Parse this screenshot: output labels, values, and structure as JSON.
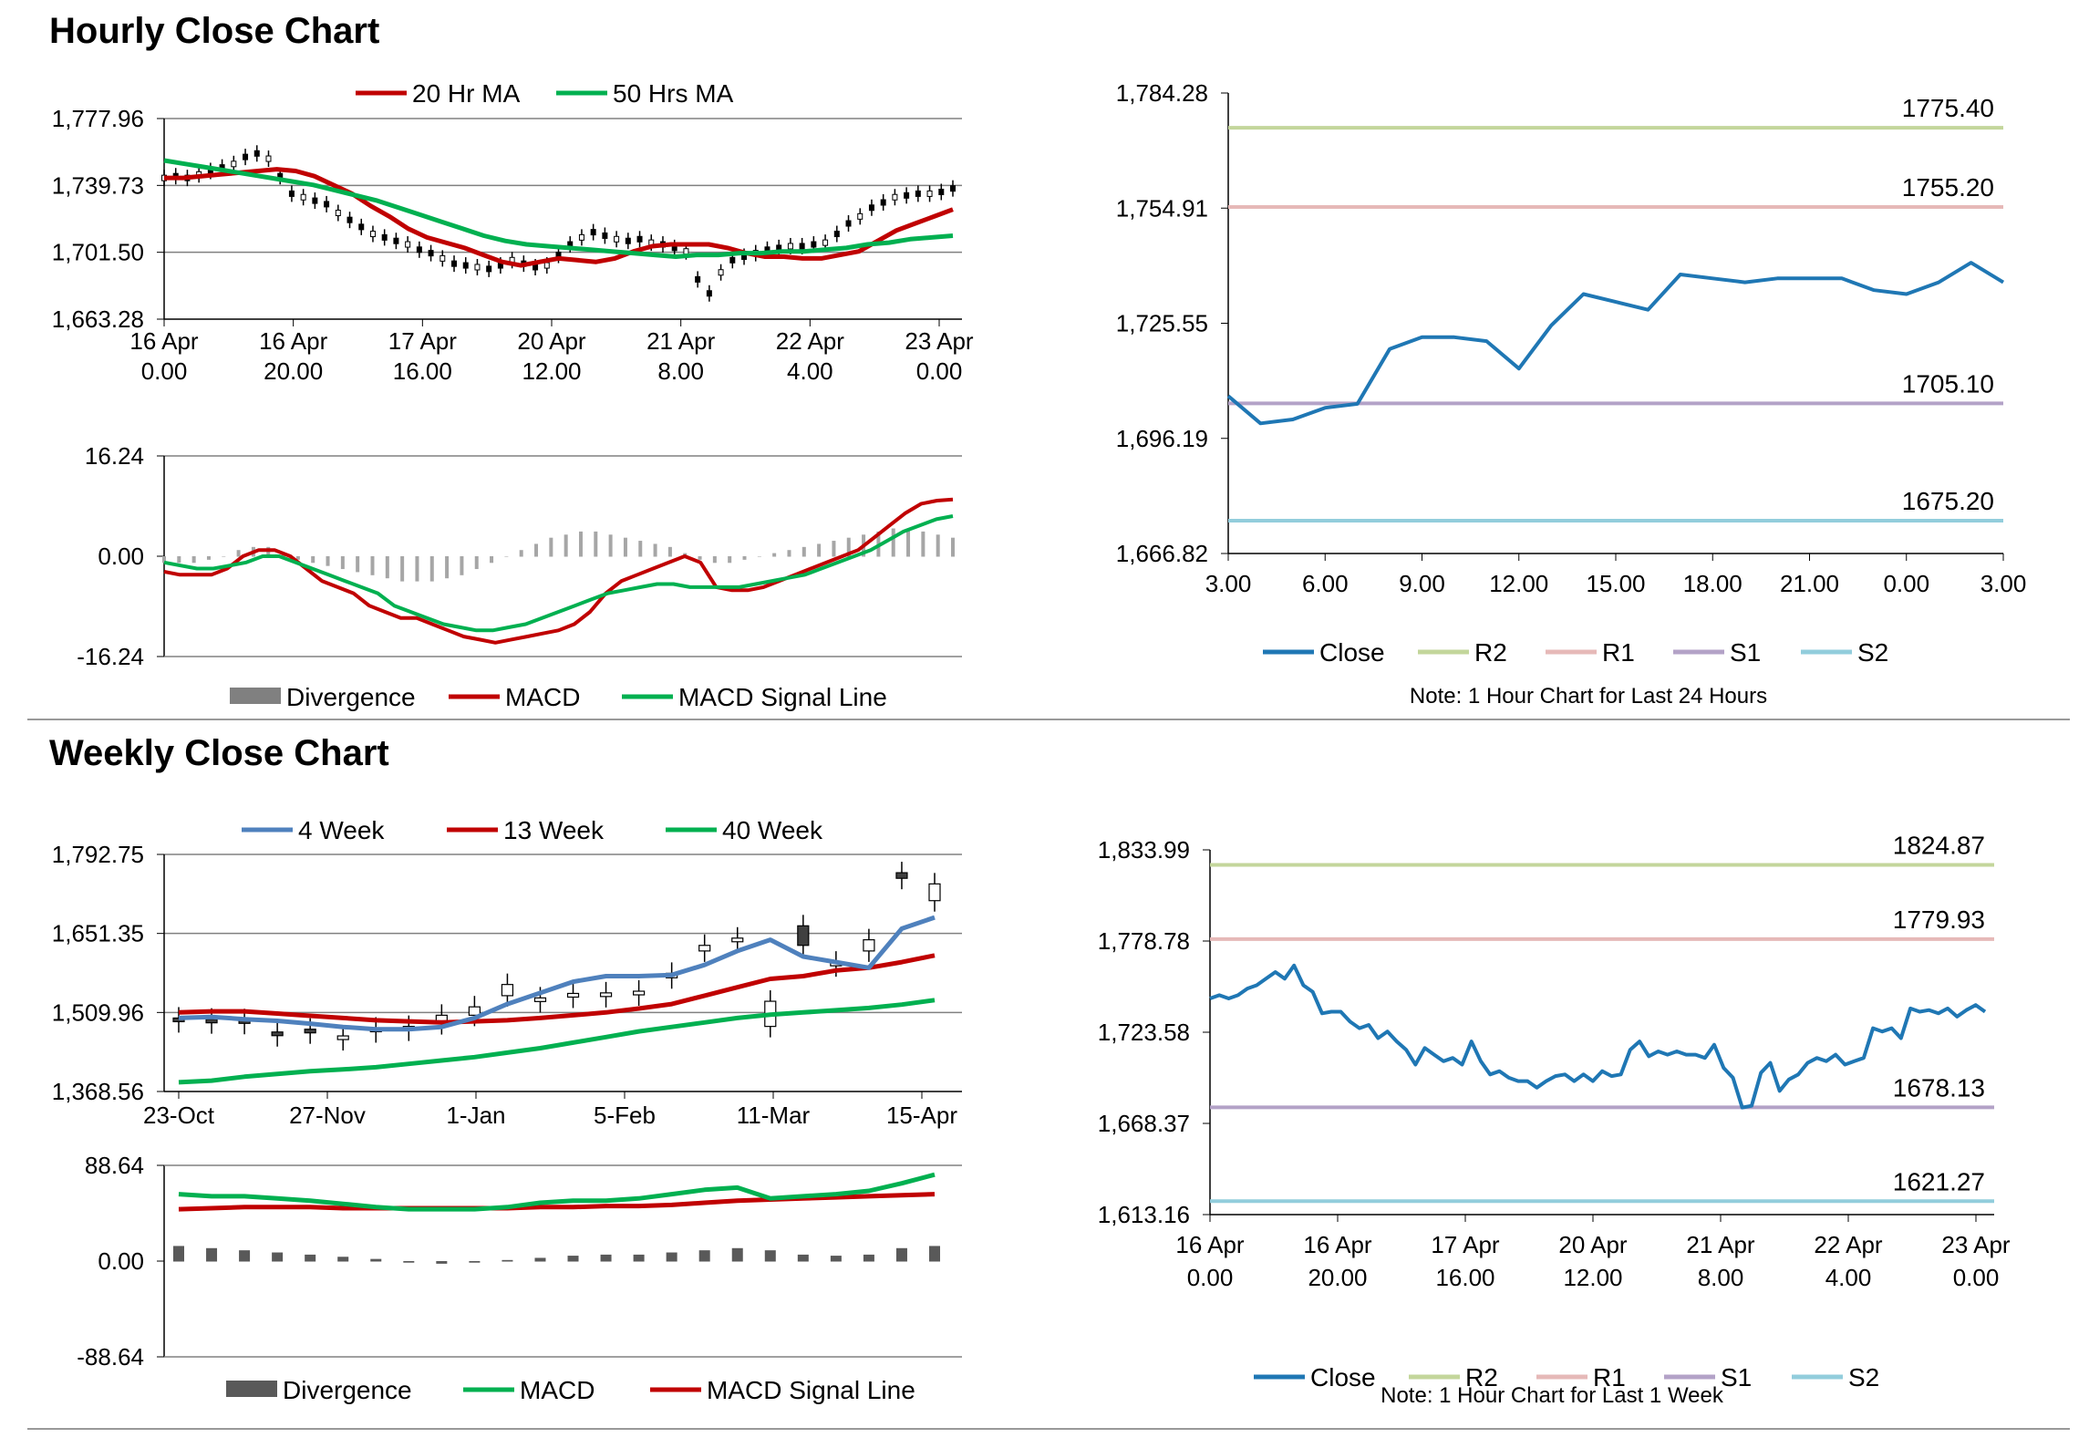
{
  "sections": {
    "hourly_title": "Hourly Close Chart",
    "weekly_title": "Weekly Close Chart"
  },
  "colors": {
    "red": "#c00000",
    "green": "#00b050",
    "blue": "#1f77b4",
    "lightblue": "#4f81bd",
    "r2": "#c3d69b",
    "r1": "#e6b9b8",
    "s1": "#b3a2c7",
    "s2": "#92cddc",
    "divergence": "#808080",
    "divergence_dark": "#595959"
  },
  "chart_data": [
    {
      "id": "hourly_price",
      "type": "line",
      "legend": [
        "20 Hr MA",
        "50 Hrs MA"
      ],
      "ylim": [
        1663.28,
        1777.96
      ],
      "yticks": [
        "1,777.96",
        "1,739.73",
        "1,701.50",
        "1,663.28"
      ],
      "xticks": [
        [
          "16 Apr",
          "0.00"
        ],
        [
          "16 Apr",
          "20.00"
        ],
        [
          "17 Apr",
          "16.00"
        ],
        [
          "20 Apr",
          "12.00"
        ],
        [
          "21 Apr",
          "8.00"
        ],
        [
          "22 Apr",
          "4.00"
        ],
        [
          "23 Apr",
          "0.00"
        ]
      ],
      "close": [
        1744,
        1745,
        1744,
        1746,
        1748,
        1750,
        1752,
        1756,
        1758,
        1755,
        1745,
        1735,
        1733,
        1731,
        1729,
        1724,
        1720,
        1716,
        1712,
        1710,
        1708,
        1706,
        1703,
        1701,
        1698,
        1695,
        1694,
        1693,
        1692,
        1694,
        1697,
        1695,
        1693,
        1694,
        1700,
        1706,
        1710,
        1713,
        1711,
        1709,
        1708,
        1709,
        1707,
        1706,
        1704,
        1702,
        1686,
        1678,
        1690,
        1697,
        1699,
        1701,
        1703,
        1704,
        1705,
        1705,
        1706,
        1707,
        1712,
        1718,
        1722,
        1727,
        1730,
        1733,
        1734,
        1735,
        1735,
        1736,
        1738
      ],
      "ma20": [
        1744,
        1744,
        1745,
        1746,
        1747,
        1748,
        1749,
        1748,
        1745,
        1740,
        1735,
        1728,
        1722,
        1715,
        1710,
        1707,
        1704,
        1700,
        1696,
        1694,
        1696,
        1698,
        1697,
        1696,
        1698,
        1702,
        1705,
        1706,
        1706,
        1706,
        1704,
        1701,
        1699,
        1699,
        1698,
        1698,
        1700,
        1702,
        1708,
        1714,
        1718,
        1722,
        1726
      ],
      "ma50": [
        1754,
        1752,
        1750,
        1748,
        1746,
        1744,
        1742,
        1740,
        1737,
        1734,
        1731,
        1727,
        1723,
        1719,
        1715,
        1711,
        1708,
        1706,
        1705,
        1704,
        1703,
        1702,
        1701,
        1700,
        1699,
        1700,
        1700,
        1701,
        1701,
        1702,
        1702,
        1703,
        1704,
        1706,
        1707,
        1709,
        1710,
        1711
      ],
      "min": 1663.28,
      "max": 1777.96
    },
    {
      "id": "hourly_macd",
      "type": "line",
      "legend": [
        "Divergence",
        "MACD",
        "MACD Signal Line"
      ],
      "ylim": [
        -16.24,
        16.24
      ],
      "yticks": [
        "16.24",
        "0.00",
        "-16.24"
      ],
      "macd": [
        -2.5,
        -3,
        -3,
        -3,
        -2,
        0,
        1,
        1,
        0,
        -2,
        -4,
        -5,
        -6,
        -8,
        -9,
        -10,
        -10,
        -11,
        -12,
        -13,
        -13.5,
        -14,
        -13.5,
        -13,
        -12.5,
        -12,
        -11,
        -9,
        -6,
        -4,
        -3,
        -2,
        -1,
        0,
        -1,
        -5,
        -5.5,
        -5.5,
        -5,
        -4,
        -3,
        -2,
        -1,
        0,
        1,
        3,
        5,
        7,
        8.5,
        9,
        9.2
      ],
      "signal": [
        -1,
        -1.5,
        -2,
        -2,
        -1.5,
        -1,
        0,
        0,
        -1,
        -2,
        -3,
        -4,
        -5,
        -6,
        -8,
        -9,
        -10,
        -11,
        -11.5,
        -12,
        -12,
        -11.5,
        -11,
        -10,
        -9,
        -8,
        -7,
        -6,
        -5.5,
        -5,
        -4.5,
        -4.5,
        -5,
        -5,
        -5,
        -5,
        -4.5,
        -4,
        -3.5,
        -3,
        -2,
        -1,
        0,
        1,
        2.5,
        4,
        5,
        6,
        6.5
      ],
      "divergence": [
        -1,
        -1,
        -1,
        -0.5,
        0,
        1,
        1.5,
        1.5,
        0.5,
        -0.5,
        -1,
        -1.5,
        -2,
        -2.5,
        -3,
        -3.5,
        -4,
        -4,
        -4,
        -3.5,
        -3,
        -2,
        -1,
        0,
        1,
        2,
        3,
        3.5,
        4,
        4,
        3.5,
        3,
        2.5,
        2,
        1.5,
        0.5,
        -0.5,
        -1,
        -1,
        -0.5,
        0,
        0.5,
        1,
        1.5,
        2,
        2.5,
        3,
        3.5,
        4,
        4.5,
        4.5,
        4,
        3.5,
        3
      ]
    },
    {
      "id": "hourly_24h",
      "type": "line",
      "legend": [
        "Close",
        "R2",
        "R1",
        "S1",
        "S2"
      ],
      "note": "Note: 1 Hour Chart for Last 24 Hours",
      "ylim": [
        1666.82,
        1784.28
      ],
      "yticks": [
        "1,784.28",
        "1,754.91",
        "1,725.55",
        "1,696.19",
        "1,666.82"
      ],
      "xticks": [
        "3.00",
        "6.00",
        "9.00",
        "12.00",
        "15.00",
        "18.00",
        "21.00",
        "0.00",
        "3.00"
      ],
      "levels": {
        "R2": "1775.40",
        "R1": "1755.20",
        "S1": "1705.10",
        "S2": "1675.20"
      },
      "level_values": {
        "R2": 1775.4,
        "R1": 1755.2,
        "S1": 1705.1,
        "S2": 1675.2
      },
      "x": [
        0,
        1,
        2,
        3,
        4,
        5,
        6,
        7,
        8,
        9,
        10,
        11,
        12,
        13,
        14,
        15,
        16,
        17,
        18,
        19,
        20,
        21,
        22,
        23,
        24
      ],
      "y": [
        1707,
        1700,
        1701,
        1704,
        1705,
        1719,
        1722,
        1722,
        1721,
        1714,
        1725,
        1733,
        1731,
        1729,
        1738,
        1737,
        1736,
        1737,
        1737,
        1737,
        1734,
        1733,
        1736,
        1741,
        1736
      ]
    },
    {
      "id": "weekly_price",
      "type": "line",
      "legend": [
        "4 Week",
        "13 Week",
        "40 Week"
      ],
      "ylim": [
        1368.56,
        1792.75
      ],
      "yticks": [
        "1,792.75",
        "1,651.35",
        "1,509.96",
        "1,368.56"
      ],
      "xticks": [
        "23-Oct",
        "27-Nov",
        "1-Jan",
        "5-Feb",
        "11-Mar",
        "15-Apr"
      ],
      "week4": [
        1500,
        1502,
        1498,
        1495,
        1490,
        1484,
        1480,
        1480,
        1484,
        1500,
        1525,
        1545,
        1565,
        1575,
        1575,
        1577,
        1595,
        1620,
        1640,
        1610,
        1600,
        1590,
        1660,
        1680
      ],
      "week13": [
        1510,
        1512,
        1512,
        1508,
        1504,
        1500,
        1496,
        1494,
        1492,
        1494,
        1496,
        1500,
        1505,
        1510,
        1517,
        1525,
        1540,
        1555,
        1570,
        1575,
        1585,
        1590,
        1600,
        1612
      ],
      "week40": [
        1385,
        1388,
        1395,
        1400,
        1405,
        1408,
        1412,
        1418,
        1424,
        1430,
        1438,
        1446,
        1456,
        1466,
        1476,
        1484,
        1492,
        1500,
        1506,
        1510,
        1514,
        1518,
        1524,
        1532
      ],
      "candles_open": [
        1500,
        1498,
        1497,
        1475,
        1480,
        1465,
        1478,
        1482,
        1490,
        1505,
        1540,
        1532,
        1540,
        1542,
        1546,
        1572,
        1620,
        1640,
        1485,
        1665,
        1595,
        1620,
        1760,
        1710
      ],
      "candles_close": [
        1497,
        1495,
        1493,
        1470,
        1475,
        1468,
        1482,
        1485,
        1505,
        1520,
        1560,
        1536,
        1544,
        1545,
        1548,
        1580,
        1630,
        1643,
        1530,
        1630,
        1600,
        1640,
        1750,
        1740
      ]
    },
    {
      "id": "weekly_macd",
      "type": "line",
      "legend": [
        "Divergence",
        "MACD",
        "MACD Signal Line"
      ],
      "ylim": [
        -88.64,
        88.64
      ],
      "yticks": [
        "88.64",
        "0.00",
        "-88.64"
      ],
      "macd": [
        62,
        60,
        60,
        58,
        56,
        53,
        50,
        48,
        48,
        48,
        50,
        54,
        56,
        56,
        58,
        62,
        66,
        68,
        58,
        60,
        62,
        65,
        72,
        80
      ],
      "signal": [
        48,
        49,
        50,
        50,
        50,
        49,
        49,
        49,
        49,
        49,
        49,
        50,
        50,
        51,
        51,
        52,
        54,
        56,
        57,
        58,
        59,
        60,
        61,
        62
      ],
      "divergence": [
        14,
        12,
        10,
        8,
        6,
        4,
        2,
        -1,
        -2,
        -1,
        1,
        3,
        5,
        6,
        6,
        8,
        10,
        12,
        10,
        6,
        5,
        6,
        12,
        14
      ]
    },
    {
      "id": "hourly_week",
      "type": "line",
      "legend": [
        "Close",
        "R2",
        "R1",
        "S1",
        "S2"
      ],
      "note": "Note: 1 Hour Chart for Last 1 Week",
      "ylim": [
        1613.16,
        1833.99
      ],
      "yticks": [
        "1,833.99",
        "1,778.78",
        "1,723.58",
        "1,668.37",
        "1,613.16"
      ],
      "xticks": [
        [
          "16 Apr",
          "0.00"
        ],
        [
          "16 Apr",
          "20.00"
        ],
        [
          "17 Apr",
          "16.00"
        ],
        [
          "20 Apr",
          "12.00"
        ],
        [
          "21 Apr",
          "8.00"
        ],
        [
          "22 Apr",
          "4.00"
        ],
        [
          "23 Apr",
          "0.00"
        ]
      ],
      "levels": {
        "R2": "1824.87",
        "R1": "1779.93",
        "S1": "1678.13",
        "S2": "1621.27"
      },
      "level_values": {
        "R2": 1824.87,
        "R1": 1779.93,
        "S1": 1678.13,
        "S2": 1621.27
      },
      "y": [
        1744,
        1746,
        1744,
        1746,
        1750,
        1752,
        1756,
        1760,
        1756,
        1764,
        1752,
        1748,
        1735,
        1736,
        1736,
        1730,
        1726,
        1728,
        1720,
        1724,
        1718,
        1713,
        1704,
        1714,
        1710,
        1706,
        1708,
        1704,
        1718,
        1706,
        1698,
        1700,
        1696,
        1694,
        1694,
        1690,
        1694,
        1697,
        1698,
        1694,
        1698,
        1694,
        1700,
        1697,
        1698,
        1713,
        1718,
        1709,
        1712,
        1710,
        1712,
        1710,
        1710,
        1708,
        1716,
        1702,
        1696,
        1678,
        1679,
        1699,
        1705,
        1688,
        1695,
        1698,
        1705,
        1708,
        1706,
        1710,
        1704,
        1706,
        1708,
        1726,
        1724,
        1726,
        1720,
        1738,
        1736,
        1737,
        1735,
        1738,
        1733,
        1737,
        1740,
        1736
      ]
    }
  ]
}
